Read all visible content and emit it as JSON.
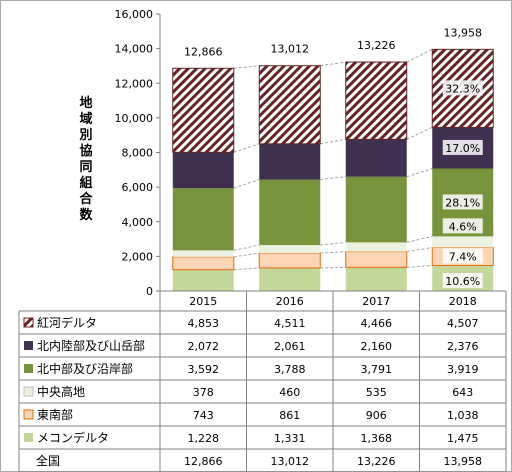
{
  "chart_data": {
    "type": "bar",
    "stacked": true,
    "ylabel": "地域別協同組合数",
    "ylim": [
      0,
      16000
    ],
    "yticks": [
      "0",
      "2,000",
      "4,000",
      "6,000",
      "8,000",
      "10,000",
      "12,000",
      "14,000",
      "16,000"
    ],
    "categories": [
      "2015",
      "2016",
      "2017",
      "2018"
    ],
    "series": [
      {
        "name": "メコンデルタ",
        "values": [
          1228,
          1331,
          1368,
          1475
        ],
        "value_labels": [
          "1,228",
          "1,331",
          "1,368",
          "1,475"
        ],
        "color": "#c4d79b"
      },
      {
        "name": "東南部",
        "values": [
          743,
          861,
          906,
          1038
        ],
        "value_labels": [
          "743",
          "861",
          "906",
          "1,038"
        ],
        "color": "#fcd5b4",
        "stroke": "#e46c0a"
      },
      {
        "name": "中央高地",
        "values": [
          378,
          460,
          535,
          643
        ],
        "value_labels": [
          "378",
          "460",
          "535",
          "643"
        ],
        "color": "#ebf1de"
      },
      {
        "name": "北中部及び沿岸部",
        "values": [
          3592,
          3788,
          3791,
          3919
        ],
        "value_labels": [
          "3,592",
          "3,788",
          "3,791",
          "3,919"
        ],
        "color": "#77933c"
      },
      {
        "name": "北内陸部及び山岳部",
        "values": [
          2072,
          2061,
          2160,
          2376
        ],
        "value_labels": [
          "2,072",
          "2,061",
          "2,160",
          "2,376"
        ],
        "color": "#403151"
      },
      {
        "name": "紅河デルタ",
        "values": [
          4853,
          4511,
          4466,
          4507
        ],
        "value_labels": [
          "4,853",
          "4,511",
          "4,466",
          "4,507"
        ],
        "color": "#632523",
        "pattern": "hatch"
      }
    ],
    "totals": {
      "name": "全国",
      "values": [
        12866,
        13012,
        13226,
        13958
      ],
      "labels": [
        "12,866",
        "13,012",
        "13,226",
        "13,958"
      ]
    },
    "share_labels_2018": [
      "10.6%",
      "7.4%",
      "4.6%",
      "28.1%",
      "17.0%",
      "32.3%"
    ],
    "legend": "table-below",
    "grid": false
  }
}
